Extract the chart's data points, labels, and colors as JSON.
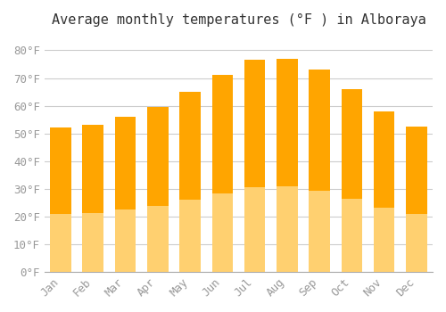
{
  "categories": [
    "Jan",
    "Feb",
    "Mar",
    "Apr",
    "May",
    "Jun",
    "Jul",
    "Aug",
    "Sep",
    "Oct",
    "Nov",
    "Dec"
  ],
  "values": [
    52,
    53,
    56,
    59.5,
    65,
    71,
    76.5,
    77,
    73,
    66,
    58,
    52.5
  ],
  "bar_color_top": "#FFA500",
  "bar_color_bottom": "#FFD070",
  "title": "Average monthly temperatures (°F ) in Alboraya",
  "ylabel": "",
  "xlabel": "",
  "ylim": [
    0,
    85
  ],
  "ytick_step": 10,
  "background_color": "#FFFFFF",
  "grid_color": "#CCCCCC",
  "title_fontsize": 11,
  "tick_fontsize": 9,
  "font_family": "monospace"
}
